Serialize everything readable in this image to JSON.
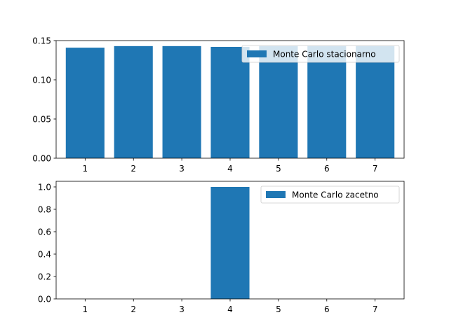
{
  "chart_data": [
    {
      "type": "bar",
      "categories": [
        "1",
        "2",
        "3",
        "4",
        "5",
        "6",
        "7"
      ],
      "x": [
        1,
        2,
        3,
        4,
        5,
        6,
        7
      ],
      "series": [
        {
          "name": "Monte Carlo stacionarno",
          "values": [
            0.141,
            0.143,
            0.143,
            0.142,
            0.143,
            0.143,
            0.143
          ]
        }
      ],
      "ylim": [
        0,
        0.15
      ],
      "yticks": [
        0.0,
        0.05,
        0.1,
        0.15
      ],
      "ytick_labels": [
        "0.00",
        "0.05",
        "0.10",
        "0.15"
      ],
      "color": "#1f77b4",
      "legend": "upper right",
      "grid": false
    },
    {
      "type": "bar",
      "categories": [
        "1",
        "2",
        "3",
        "4",
        "5",
        "6",
        "7"
      ],
      "x": [
        1,
        2,
        3,
        4,
        5,
        6,
        7
      ],
      "series": [
        {
          "name": "Monte Carlo zacetno",
          "values": [
            0,
            0,
            0,
            1.0,
            0,
            0,
            0
          ]
        }
      ],
      "ylim": [
        0,
        1.05
      ],
      "yticks": [
        0.0,
        0.2,
        0.4,
        0.6,
        0.8,
        1.0
      ],
      "ytick_labels": [
        "0.0",
        "0.2",
        "0.4",
        "0.6",
        "0.8",
        "1.0"
      ],
      "color": "#1f77b4",
      "legend": "upper right",
      "grid": false
    }
  ]
}
